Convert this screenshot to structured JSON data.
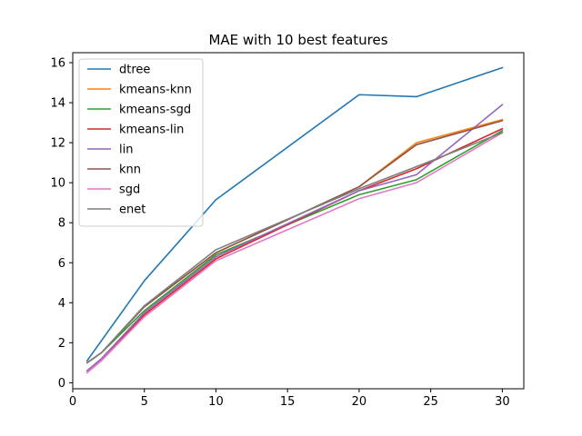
{
  "chart_data": {
    "type": "line",
    "title": "MAE with 10 best features",
    "xlabel": "",
    "ylabel": "",
    "xlim": [
      0,
      31.5
    ],
    "ylim": [
      -0.3,
      16.5
    ],
    "xticks": [
      0,
      5,
      10,
      15,
      20,
      25,
      30
    ],
    "yticks": [
      0,
      2,
      4,
      6,
      8,
      10,
      12,
      14,
      16
    ],
    "grid": false,
    "legend_position": "upper-left",
    "series": [
      {
        "name": "dtree",
        "color": "#1f77b4",
        "x": [
          1,
          5,
          10,
          20,
          24,
          30
        ],
        "y": [
          1.1,
          5.1,
          9.15,
          14.4,
          14.3,
          15.75
        ]
      },
      {
        "name": "kmeans-knn",
        "color": "#ff7f0e",
        "x": [
          1,
          2,
          5,
          10,
          20,
          24,
          30
        ],
        "y": [
          1.0,
          1.5,
          3.8,
          6.5,
          9.8,
          12.0,
          13.15
        ]
      },
      {
        "name": "kmeans-sgd",
        "color": "#2ca02c",
        "x": [
          1,
          2,
          5,
          10,
          20,
          24,
          30
        ],
        "y": [
          1.0,
          1.5,
          3.6,
          6.4,
          9.4,
          10.15,
          12.6
        ]
      },
      {
        "name": "kmeans-lin",
        "color": "#d62728",
        "x": [
          1,
          2,
          5,
          10,
          20,
          24,
          30
        ],
        "y": [
          0.6,
          1.2,
          3.4,
          6.2,
          9.6,
          10.7,
          12.7
        ]
      },
      {
        "name": "lin",
        "color": "#9467bd",
        "x": [
          1,
          2,
          5,
          10,
          20,
          24,
          30
        ],
        "y": [
          0.6,
          1.2,
          3.5,
          6.3,
          9.6,
          10.4,
          13.9
        ]
      },
      {
        "name": "knn",
        "color": "#8c564b",
        "x": [
          1,
          2,
          5,
          10,
          20,
          24,
          30
        ],
        "y": [
          1.0,
          1.5,
          3.8,
          6.5,
          9.8,
          11.9,
          13.1
        ]
      },
      {
        "name": "sgd",
        "color": "#e377c2",
        "x": [
          1,
          2,
          5,
          10,
          20,
          24,
          30
        ],
        "y": [
          0.5,
          1.1,
          3.3,
          6.1,
          9.2,
          10.0,
          12.5
        ]
      },
      {
        "name": "enet",
        "color": "#7f7f7f",
        "x": [
          1,
          2,
          5,
          10,
          20,
          24,
          30
        ],
        "y": [
          1.0,
          1.5,
          3.85,
          6.65,
          9.7,
          10.8,
          12.5
        ]
      }
    ]
  }
}
